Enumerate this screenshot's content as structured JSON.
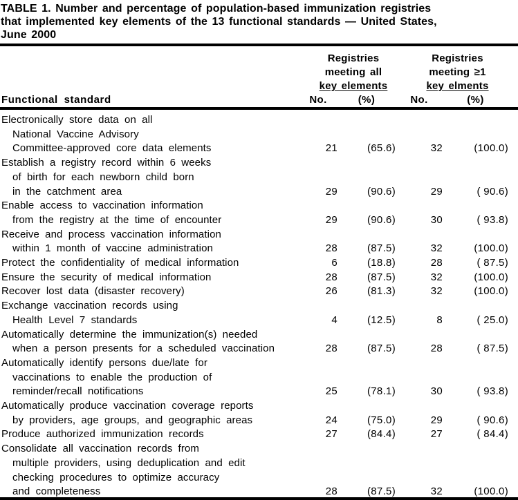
{
  "colors": {
    "text": "#000000",
    "background": "#ffffff",
    "rule": "#000000"
  },
  "title": {
    "lines": [
      "TABLE 1. Number and percentage of population-based immunization registries",
      "that implemented key elements of the 13 functional standards — United States,",
      "June 2000"
    ]
  },
  "table": {
    "header": {
      "functional_standard": "Functional standard",
      "group_all": {
        "lines": [
          "Registries",
          "meeting all",
          "key elements"
        ]
      },
      "group_ge1": {
        "lines": [
          "Registries",
          "meeting ≥1",
          "key elments"
        ]
      },
      "no_label": "No.",
      "pct_label": "(%)"
    },
    "rows": [
      {
        "lines": [
          "Electronically store data on all",
          "National Vaccine Advisory",
          "Committee-approved core data elements"
        ],
        "no_all": "21",
        "pct_all": "(65.6)",
        "no_ge1": "32",
        "pct_ge1": "(100.0)"
      },
      {
        "lines": [
          "Establish a registry record within 6 weeks",
          "of birth for each newborn child born",
          "in the catchment area"
        ],
        "no_all": "29",
        "pct_all": "(90.6)",
        "no_ge1": "29",
        "pct_ge1": "( 90.6)"
      },
      {
        "lines": [
          "Enable access to vaccination information",
          "from the registry at the time of encounter"
        ],
        "no_all": "29",
        "pct_all": "(90.6)",
        "no_ge1": "30",
        "pct_ge1": "( 93.8)"
      },
      {
        "lines": [
          "Receive and process vaccination information",
          "within 1 month of vaccine administration"
        ],
        "no_all": "28",
        "pct_all": "(87.5)",
        "no_ge1": "32",
        "pct_ge1": "(100.0)"
      },
      {
        "lines": [
          "Protect the confidentiality of medical information"
        ],
        "no_all": "6",
        "pct_all": "(18.8)",
        "no_ge1": "28",
        "pct_ge1": "( 87.5)"
      },
      {
        "lines": [
          "Ensure the security of medical information"
        ],
        "no_all": "28",
        "pct_all": "(87.5)",
        "no_ge1": "32",
        "pct_ge1": "(100.0)"
      },
      {
        "lines": [
          "Recover lost data (disaster recovery)"
        ],
        "no_all": "26",
        "pct_all": "(81.3)",
        "no_ge1": "32",
        "pct_ge1": "(100.0)"
      },
      {
        "lines": [
          "Exchange vaccination records using",
          "Health Level 7 standards"
        ],
        "no_all": "4",
        "pct_all": "(12.5)",
        "no_ge1": "8",
        "pct_ge1": "( 25.0)"
      },
      {
        "lines": [
          "Automatically determine the immunization(s) needed",
          "when a person presents for a scheduled vaccination"
        ],
        "no_all": "28",
        "pct_all": "(87.5)",
        "no_ge1": "28",
        "pct_ge1": "( 87.5)"
      },
      {
        "lines": [
          "Automatically identify persons due/late for",
          "vaccinations to enable the production of",
          "reminder/recall notifications"
        ],
        "no_all": "25",
        "pct_all": "(78.1)",
        "no_ge1": "30",
        "pct_ge1": "( 93.8)"
      },
      {
        "lines": [
          "Automatically produce vaccination coverage reports",
          "by providers, age groups, and geographic areas"
        ],
        "no_all": "24",
        "pct_all": "(75.0)",
        "no_ge1": "29",
        "pct_ge1": "( 90.6)"
      },
      {
        "lines": [
          "Produce authorized immunization records"
        ],
        "no_all": "27",
        "pct_all": "(84.4)",
        "no_ge1": "27",
        "pct_ge1": "( 84.4)"
      },
      {
        "lines": [
          "Consolidate all vaccination records from",
          "multiple providers, using deduplication and edit",
          "checking procedures to optimize accuracy",
          "and completeness"
        ],
        "no_all": "28",
        "pct_all": "(87.5)",
        "no_ge1": "32",
        "pct_ge1": "(100.0)"
      }
    ]
  }
}
